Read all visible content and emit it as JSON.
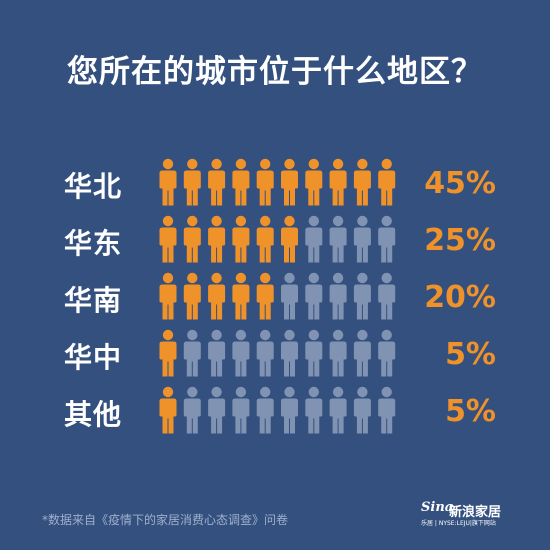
{
  "title": "您所在的城市位于什么地区？",
  "chart_data": {
    "type": "bar",
    "title": "您所在的城市位于什么地区？",
    "categories": [
      "华北",
      "华东",
      "华南",
      "华中",
      "其他"
    ],
    "values": [
      45,
      25,
      20,
      5,
      5
    ],
    "value_labels": [
      "45%",
      "25%",
      "20%",
      "5%",
      "5%"
    ],
    "unit": "%",
    "icons_per_row": 10,
    "filled_icons": [
      10,
      6,
      5,
      1,
      1
    ],
    "icon": "person-icon",
    "colors": {
      "filled": "#f0922a",
      "empty": "#8093b3",
      "background": "#34507f",
      "label": "#ffffff",
      "value": "#f0922a"
    }
  },
  "footnote": "*数据来自《疫情下的家居消费心态调查》问卷",
  "brand": {
    "logo": "Sina",
    "name": "新浪家居",
    "subtitle": "乐居 | NYSE:LEJU|旗下网站"
  }
}
